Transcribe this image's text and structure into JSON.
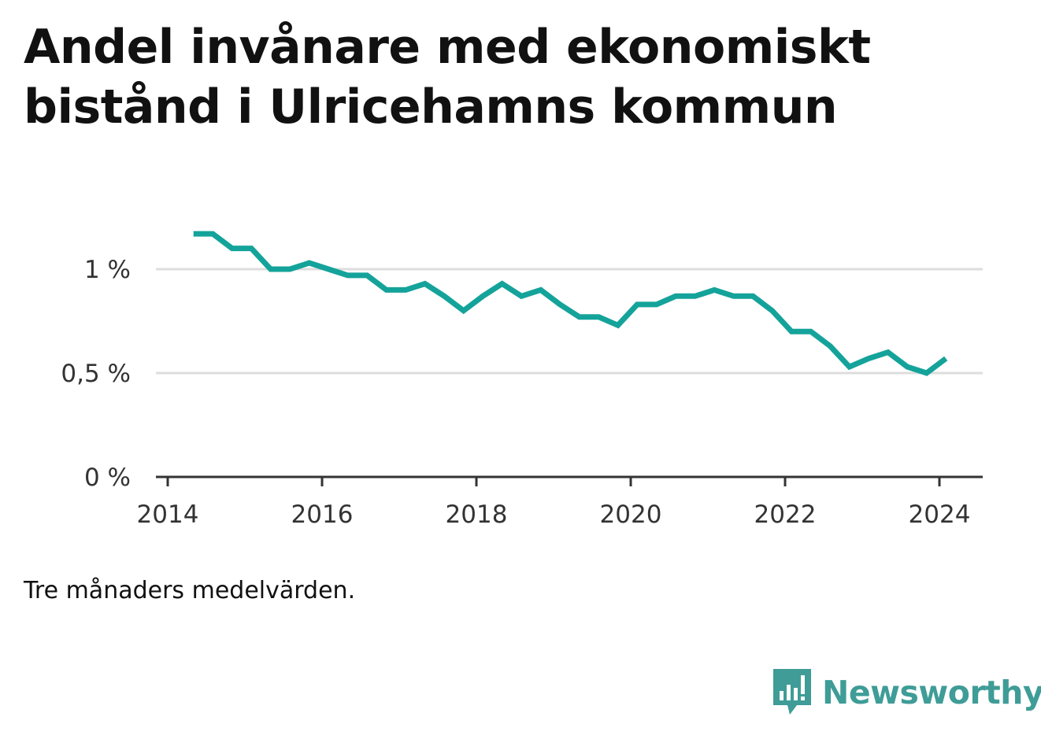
{
  "title": "Andel invånare med ekonomiskt bistånd i Ulricehamns kommun",
  "note": "Tre månaders medelvärden.",
  "brand": {
    "name": "Newsworthy",
    "icon": "newsworthy-logo-icon"
  },
  "colors": {
    "line": "#14a39a",
    "grid": "#dddddd",
    "axis": "#333333",
    "brand": "#3f9c97"
  },
  "chart_data": {
    "type": "line",
    "title": "Andel invånare med ekonomiskt bistånd i Ulricehamns kommun",
    "xlabel": "",
    "ylabel": "",
    "xlim": [
      2014,
      2024.6
    ],
    "ylim": [
      0,
      1.2
    ],
    "x_ticks": [
      2014,
      2016,
      2018,
      2020,
      2022,
      2024
    ],
    "x_tick_labels": [
      "2014",
      "2016",
      "2018",
      "2020",
      "2022",
      "2024"
    ],
    "y_ticks": [
      0,
      0.5,
      1
    ],
    "y_tick_labels": [
      "0 %",
      "0,5 %",
      "1 %"
    ],
    "grid": true,
    "legend": "none",
    "series": [
      {
        "x": [
          "2014-05",
          "2014-08",
          "2014-11",
          "2015-02",
          "2015-05",
          "2015-08",
          "2015-11",
          "2016-02",
          "2016-05",
          "2016-08",
          "2016-11",
          "2017-02",
          "2017-05",
          "2017-08",
          "2017-11",
          "2018-02",
          "2018-05",
          "2018-08",
          "2018-11",
          "2019-02",
          "2019-05",
          "2019-08",
          "2019-11",
          "2020-02",
          "2020-05",
          "2020-08",
          "2020-11",
          "2021-02",
          "2021-05",
          "2021-08",
          "2021-11",
          "2022-02",
          "2022-05",
          "2022-08",
          "2022-11",
          "2023-02",
          "2023-05",
          "2023-08",
          "2023-11",
          "2024-02"
        ],
        "values": [
          1.17,
          1.17,
          1.1,
          1.1,
          1.0,
          1.0,
          1.03,
          1.0,
          0.97,
          0.97,
          0.9,
          0.9,
          0.93,
          0.87,
          0.8,
          0.87,
          0.93,
          0.87,
          0.9,
          0.83,
          0.77,
          0.77,
          0.73,
          0.83,
          0.83,
          0.87,
          0.87,
          0.9,
          0.87,
          0.87,
          0.8,
          0.7,
          0.7,
          0.63,
          0.53,
          0.57,
          0.6,
          0.53,
          0.5,
          0.57
        ]
      }
    ]
  }
}
